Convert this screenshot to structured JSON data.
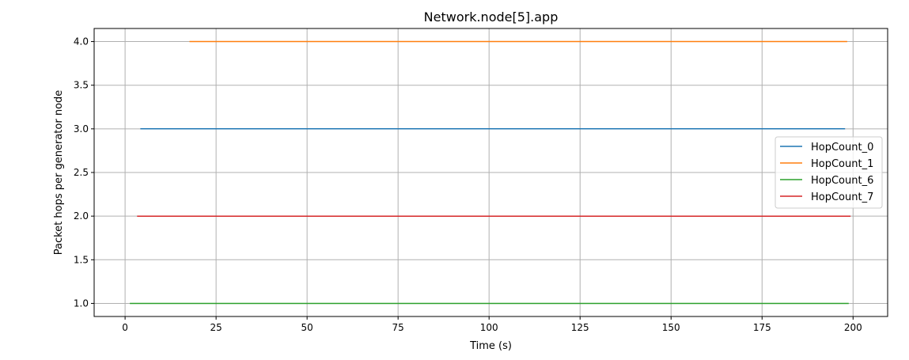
{
  "chart_data": {
    "type": "line",
    "title": "Network.node[5].app",
    "xlabel": "Time (s)",
    "ylabel": "Packet hops per generator node",
    "xlim": [
      -8.5,
      209.5
    ],
    "ylim": [
      0.85,
      4.15
    ],
    "xticks": [
      0,
      25,
      50,
      75,
      100,
      125,
      150,
      175,
      200
    ],
    "xtick_labels": [
      "0",
      "25",
      "50",
      "75",
      "100",
      "125",
      "150",
      "175",
      "200"
    ],
    "yticks": [
      1.0,
      1.5,
      2.0,
      2.5,
      3.0,
      3.5,
      4.0
    ],
    "ytick_labels": [
      "1.0",
      "1.5",
      "2.0",
      "2.5",
      "3.0",
      "3.5",
      "4.0"
    ],
    "grid": true,
    "legend_position": "center-right",
    "series": [
      {
        "name": "HopCount_0",
        "color": "#1f77b4",
        "x": [
          4.2,
          197.8
        ],
        "y": [
          3.0,
          3.0
        ]
      },
      {
        "name": "HopCount_1",
        "color": "#ff7f0e",
        "x": [
          17.7,
          198.4
        ],
        "y": [
          4.0,
          4.0
        ]
      },
      {
        "name": "HopCount_6",
        "color": "#2ca02c",
        "x": [
          1.3,
          198.8
        ],
        "y": [
          1.0,
          1.0
        ]
      },
      {
        "name": "HopCount_7",
        "color": "#d62728",
        "x": [
          3.3,
          199.3
        ],
        "y": [
          2.0,
          2.0
        ]
      }
    ]
  }
}
